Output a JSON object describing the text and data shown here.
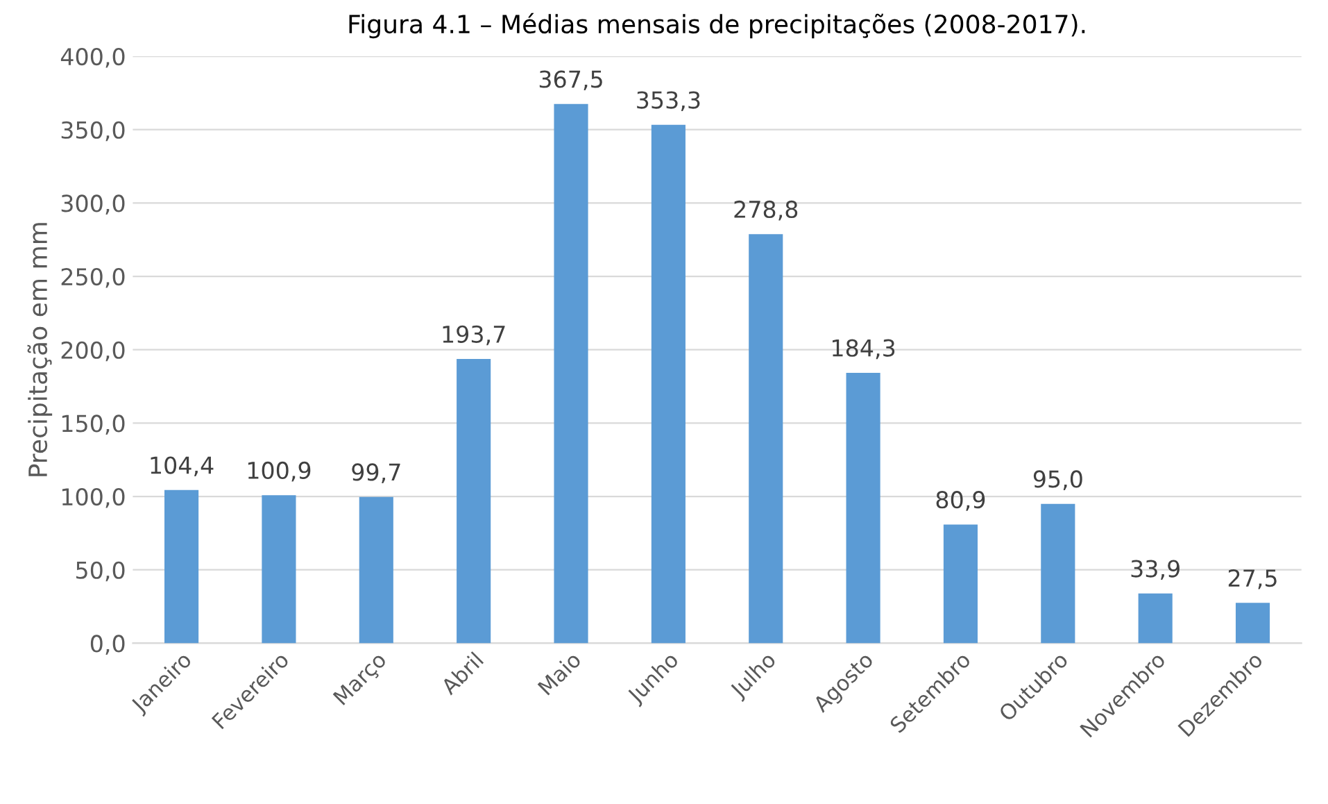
{
  "chart_data": {
    "type": "bar",
    "title": "Figura 4.1 – Médias mensais de precipitações (2008-2017).",
    "ylabel": "Precipitação em mm",
    "categories": [
      "Janeiro",
      "Fevereiro",
      "Março",
      "Abril",
      "Maio",
      "Junho",
      "Julho",
      "Agosto",
      "Setembro",
      "Outubro",
      "Novembro",
      "Dezembro"
    ],
    "values": [
      104.4,
      100.9,
      99.7,
      193.7,
      367.5,
      353.3,
      278.8,
      184.3,
      80.9,
      95.0,
      33.9,
      27.5
    ],
    "value_labels": [
      "104,4",
      "100,9",
      "99,7",
      "193,7",
      "367,5",
      "353,3",
      "278,8",
      "184,3",
      "80,9",
      "95,0",
      "33,9",
      "27,5"
    ],
    "color": "#5b9bd5",
    "ylim": [
      0,
      400
    ],
    "yticks": [
      {
        "value": 0,
        "label": "0,0"
      },
      {
        "value": 50,
        "label": "50,0"
      },
      {
        "value": 100,
        "label": "100,0"
      },
      {
        "value": 150,
        "label": "150,0"
      },
      {
        "value": 200,
        "label": "200,0"
      },
      {
        "value": 250,
        "label": "250,0"
      },
      {
        "value": 300,
        "label": "300,0"
      },
      {
        "value": 350,
        "label": "350,0"
      },
      {
        "value": 400,
        "label": "400,0"
      }
    ],
    "grid": "y"
  }
}
